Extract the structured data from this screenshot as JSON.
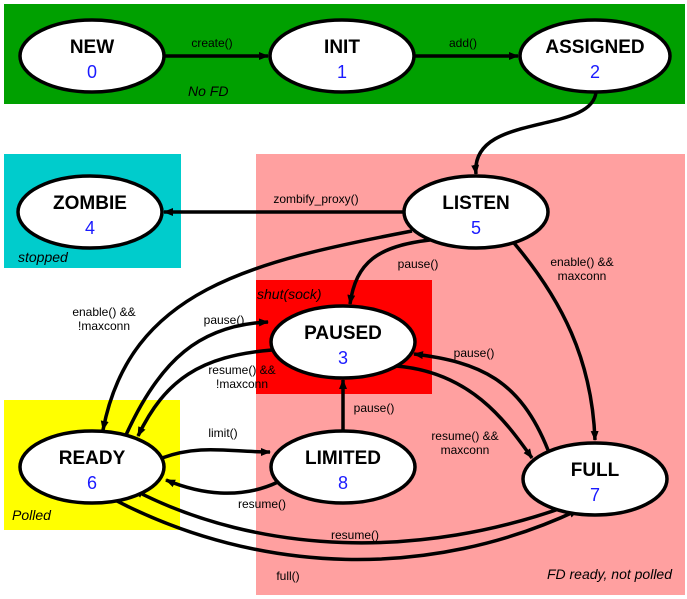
{
  "zones": [
    {
      "key": "nofd",
      "label": "No FD",
      "color": "#00a000"
    },
    {
      "key": "stopped",
      "label": "stopped",
      "color": "#00cccc"
    },
    {
      "key": "fdready",
      "label": "FD ready, not polled",
      "color": "#ffa0a0"
    },
    {
      "key": "shut",
      "label": "shut(sock)",
      "color": "#ff0000"
    },
    {
      "key": "polled",
      "label": "Polled",
      "color": "#ffff00"
    }
  ],
  "states": [
    {
      "key": "new",
      "name": "NEW",
      "num": "0"
    },
    {
      "key": "init",
      "name": "INIT",
      "num": "1"
    },
    {
      "key": "assigned",
      "name": "ASSIGNED",
      "num": "2"
    },
    {
      "key": "zombie",
      "name": "ZOMBIE",
      "num": "4"
    },
    {
      "key": "listen",
      "name": "LISTEN",
      "num": "5"
    },
    {
      "key": "paused",
      "name": "PAUSED",
      "num": "3"
    },
    {
      "key": "ready",
      "name": "READY",
      "num": "6"
    },
    {
      "key": "limited",
      "name": "LIMITED",
      "num": "8"
    },
    {
      "key": "full",
      "name": "FULL",
      "num": "7"
    }
  ],
  "transitions": [
    {
      "key": "new-init",
      "label": [
        "create()"
      ]
    },
    {
      "key": "init-assigned",
      "label": [
        "add()"
      ]
    },
    {
      "key": "assigned-listen",
      "label": []
    },
    {
      "key": "listen-zombie",
      "label": [
        "zombify_proxy()"
      ]
    },
    {
      "key": "listen-paused",
      "label": [
        "pause()"
      ]
    },
    {
      "key": "listen-full",
      "label": [
        "enable() &&",
        "maxconn"
      ]
    },
    {
      "key": "listen-ready",
      "label": [
        "enable() &&",
        "!maxconn"
      ]
    },
    {
      "key": "ready-paused",
      "label": [
        "pause()"
      ]
    },
    {
      "key": "paused-ready",
      "label": [
        "resume() &&",
        "!maxconn"
      ]
    },
    {
      "key": "ready-limited",
      "label": [
        "limit()"
      ]
    },
    {
      "key": "limited-ready",
      "label": [
        "resume()"
      ]
    },
    {
      "key": "limited-paused",
      "label": [
        "pause()"
      ]
    },
    {
      "key": "full-paused",
      "label": [
        "pause()"
      ]
    },
    {
      "key": "paused-full",
      "label": [
        "resume() &&",
        "maxconn"
      ]
    },
    {
      "key": "full-ready",
      "label": [
        "resume()"
      ]
    },
    {
      "key": "ready-full",
      "label": [
        "full()"
      ]
    }
  ]
}
